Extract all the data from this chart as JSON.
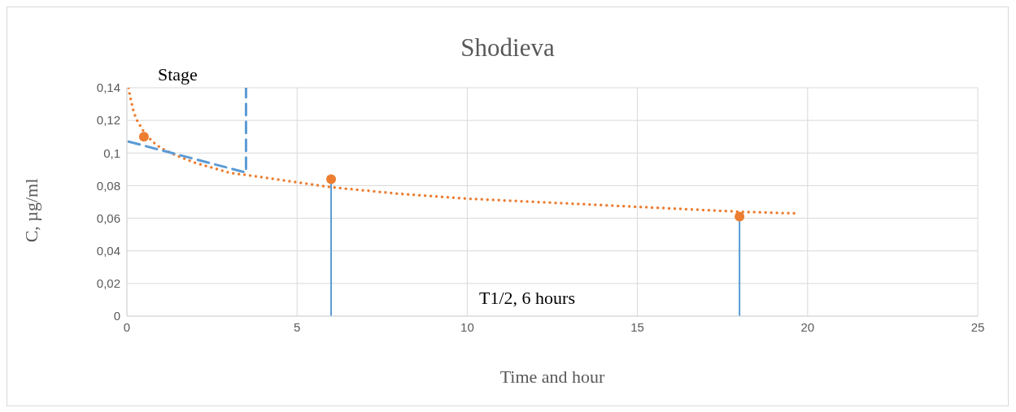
{
  "chart_data": {
    "type": "line",
    "title": "Shodieva",
    "xlabel": "Time and hour",
    "ylabel": "C, µg/ml",
    "xlim": [
      0,
      25
    ],
    "xticks": [
      0,
      5,
      10,
      15,
      20,
      25
    ],
    "ylim": [
      0,
      0.14
    ],
    "yticks": [
      {
        "value": 0,
        "label": "0"
      },
      {
        "value": 0.02,
        "label": "0,02"
      },
      {
        "value": 0.04,
        "label": "0,04"
      },
      {
        "value": 0.06,
        "label": "0,06"
      },
      {
        "value": 0.08,
        "label": "0,08"
      },
      {
        "value": 0.1,
        "label": "0,1"
      },
      {
        "value": 0.12,
        "label": "0,12"
      },
      {
        "value": 0.14,
        "label": "0,14"
      }
    ],
    "grid": true,
    "series": [
      {
        "type": "scatter",
        "color": "#ed7d31",
        "marker": "circle",
        "x": [
          0.5,
          6,
          18
        ],
        "values": [
          0.11,
          0.084,
          0.061
        ]
      },
      {
        "color": "#ed7d31",
        "line_style": "dotted",
        "marker": "none",
        "x": [
          0.05,
          0.1,
          0.2,
          0.3,
          0.5,
          0.75,
          1,
          1.5,
          2,
          3,
          4,
          5,
          6,
          8,
          10,
          12,
          14,
          16,
          18,
          19.6
        ],
        "values": [
          0.14,
          0.134,
          0.125,
          0.12,
          0.113,
          0.107,
          0.103,
          0.098,
          0.094,
          0.088,
          0.085,
          0.082,
          0.079,
          0.075,
          0.072,
          0.07,
          0.068,
          0.066,
          0.064,
          0.063
        ]
      },
      {
        "color": "#5b9bd5",
        "line_style": "dashed",
        "marker": "none",
        "x": [
          0.05,
          3.5,
          3.5
        ],
        "values": [
          0.107,
          0.088,
          0.14
        ]
      },
      {
        "color": "#5b9bd5",
        "line_style": "solid",
        "marker": "none",
        "x": [
          6,
          6
        ],
        "values": [
          0.084,
          0
        ]
      },
      {
        "color": "#5b9bd5",
        "line_style": "solid",
        "marker": "none",
        "x": [
          18,
          18
        ],
        "values": [
          0.061,
          0
        ]
      }
    ],
    "annotations": [
      "Stage",
      "T1/2, 6 hours"
    ]
  }
}
